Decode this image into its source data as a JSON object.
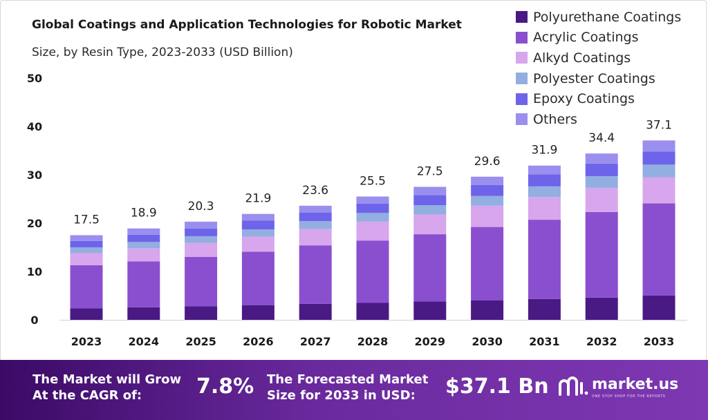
{
  "chart_data": {
    "type": "bar",
    "stacked": true,
    "title": "Global Coatings and Application Technologies for Robotic Market",
    "subtitle": "Size, by Resin Type, 2023-2033 (USD Billion)",
    "categories": [
      "2023",
      "2024",
      "2025",
      "2026",
      "2027",
      "2028",
      "2029",
      "2030",
      "2031",
      "2032",
      "2033"
    ],
    "totals": [
      17.5,
      18.9,
      20.3,
      21.9,
      23.6,
      25.5,
      27.5,
      29.6,
      31.9,
      34.4,
      37.1
    ],
    "total_labels": [
      "17.5",
      "18.9",
      "20.3",
      "21.9",
      "23.6",
      "25.5",
      "27.5",
      "29.6",
      "31.9",
      "34.4",
      "37.1"
    ],
    "ylim": [
      0,
      50
    ],
    "yticks": [
      0,
      10,
      20,
      30,
      40,
      50
    ],
    "grid": false,
    "legend_position": "top-right",
    "series": [
      {
        "name": "Polyurethane Coatings",
        "color": "#4a1a84",
        "values": [
          2.4,
          2.6,
          2.8,
          3.0,
          3.3,
          3.5,
          3.8,
          4.0,
          4.3,
          4.6,
          5.0
        ]
      },
      {
        "name": "Acrylic Coatings",
        "color": "#8a4fcf",
        "values": [
          8.9,
          9.5,
          10.2,
          11.1,
          12.1,
          12.9,
          13.9,
          15.2,
          16.4,
          17.7,
          19.1
        ]
      },
      {
        "name": "Alkyd Coatings",
        "color": "#d7a6ec",
        "values": [
          2.5,
          2.7,
          2.9,
          3.1,
          3.4,
          3.9,
          4.1,
          4.4,
          4.7,
          5.0,
          5.4
        ]
      },
      {
        "name": "Polyester Coatings",
        "color": "#93aee0",
        "values": [
          1.2,
          1.3,
          1.4,
          1.5,
          1.6,
          1.8,
          1.9,
          2.0,
          2.2,
          2.4,
          2.6
        ]
      },
      {
        "name": "Epoxy Coatings",
        "color": "#6e64ea",
        "values": [
          1.3,
          1.5,
          1.6,
          1.8,
          1.8,
          1.9,
          2.1,
          2.3,
          2.5,
          2.6,
          2.7
        ]
      },
      {
        "name": "Others",
        "color": "#9a8eef",
        "values": [
          1.2,
          1.3,
          1.4,
          1.4,
          1.4,
          1.5,
          1.7,
          1.7,
          1.8,
          2.1,
          2.3
        ]
      }
    ]
  },
  "banner": {
    "cagr_label_line1": "The Market will Grow",
    "cagr_label_line2": "At the CAGR of:",
    "cagr_value": "7.8%",
    "forecast_label_line1": "The Forecasted Market",
    "forecast_label_line2": "Size for 2033 in USD:",
    "forecast_value": "$37.1 Bn",
    "logo_name": "market.us",
    "logo_tagline": "ONE STOP SHOP FOR THE REPORTS"
  }
}
